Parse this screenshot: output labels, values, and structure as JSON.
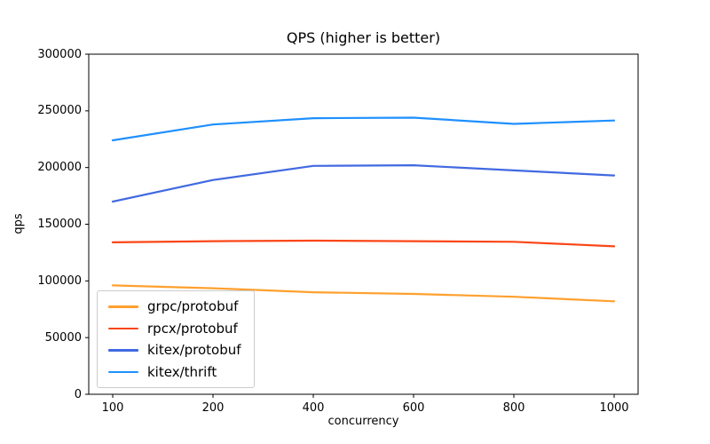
{
  "chart_data": {
    "type": "line",
    "title": "QPS (higher is better)",
    "xlabel": "concurrency",
    "ylabel": "qps",
    "x": [
      100,
      200,
      400,
      600,
      800,
      1000
    ],
    "x_tick_labels": [
      "100",
      "200",
      "400",
      "600",
      "800",
      "1000"
    ],
    "y_tick_labels": [
      "0",
      "50000",
      "100000",
      "150000",
      "200000",
      "250000",
      "300000"
    ],
    "ylim": [
      0,
      300000
    ],
    "grid": false,
    "legend_position": "lower-left",
    "axis_color": "#000000",
    "series": [
      {
        "name": "grpc/protobuf",
        "color": "#FFA02E",
        "values": [
          96000,
          93500,
          90000,
          88500,
          86000,
          82000
        ]
      },
      {
        "name": "rpcx/protobuf",
        "color": "#FA4616",
        "values": [
          134000,
          135000,
          135500,
          135000,
          134500,
          130500
        ]
      },
      {
        "name": "kitex/protobuf",
        "color": "#4169E1",
        "values": [
          170000,
          189000,
          201500,
          202000,
          197500,
          193000
        ]
      },
      {
        "name": "kitex/thrift",
        "color": "#1E90FF",
        "values": [
          224000,
          238000,
          243500,
          244000,
          238500,
          241500
        ]
      }
    ]
  }
}
